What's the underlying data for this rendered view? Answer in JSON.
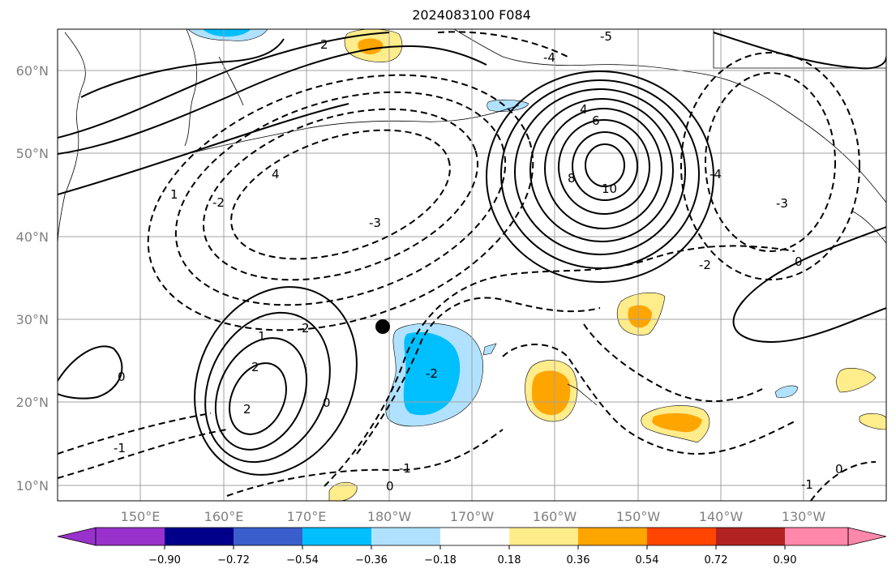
{
  "title": "2024083100 F084",
  "map": {
    "latitude_labels": [
      "60°N",
      "50°N",
      "40°N",
      "30°N",
      "20°N",
      "10°N"
    ],
    "longitude_labels": [
      "150°E",
      "160°E",
      "170°E",
      "180°W",
      "170°W",
      "160°W",
      "150°W",
      "140°W",
      "130°W"
    ],
    "grid": true,
    "marker": {
      "name": "storm-center-dot",
      "lat": 29,
      "lon": 180.5,
      "color": "#000000"
    },
    "contour_labels": [
      "-3",
      "-3",
      "-2",
      "-2",
      "-2",
      "-1",
      "-1",
      "-1",
      "0",
      "0",
      "0",
      "0",
      "0",
      "1",
      "1",
      "2",
      "2",
      "2",
      "2",
      "4",
      "4",
      "6",
      "8",
      "10",
      "-4",
      "-4",
      "-5"
    ]
  },
  "colorbar": {
    "ticks": [
      "−0.90",
      "−0.72",
      "−0.54",
      "−0.36",
      "−0.18",
      "0.18",
      "0.36",
      "0.54",
      "0.72",
      "0.90"
    ],
    "colors": [
      "#9932cc",
      "#00008b",
      "#3a5fcd",
      "#00bfff",
      "#b0e2ff",
      "#ffffff",
      "#ffec8b",
      "#ffa500",
      "#ff4500",
      "#b22222",
      "#ff88aa"
    ]
  }
}
